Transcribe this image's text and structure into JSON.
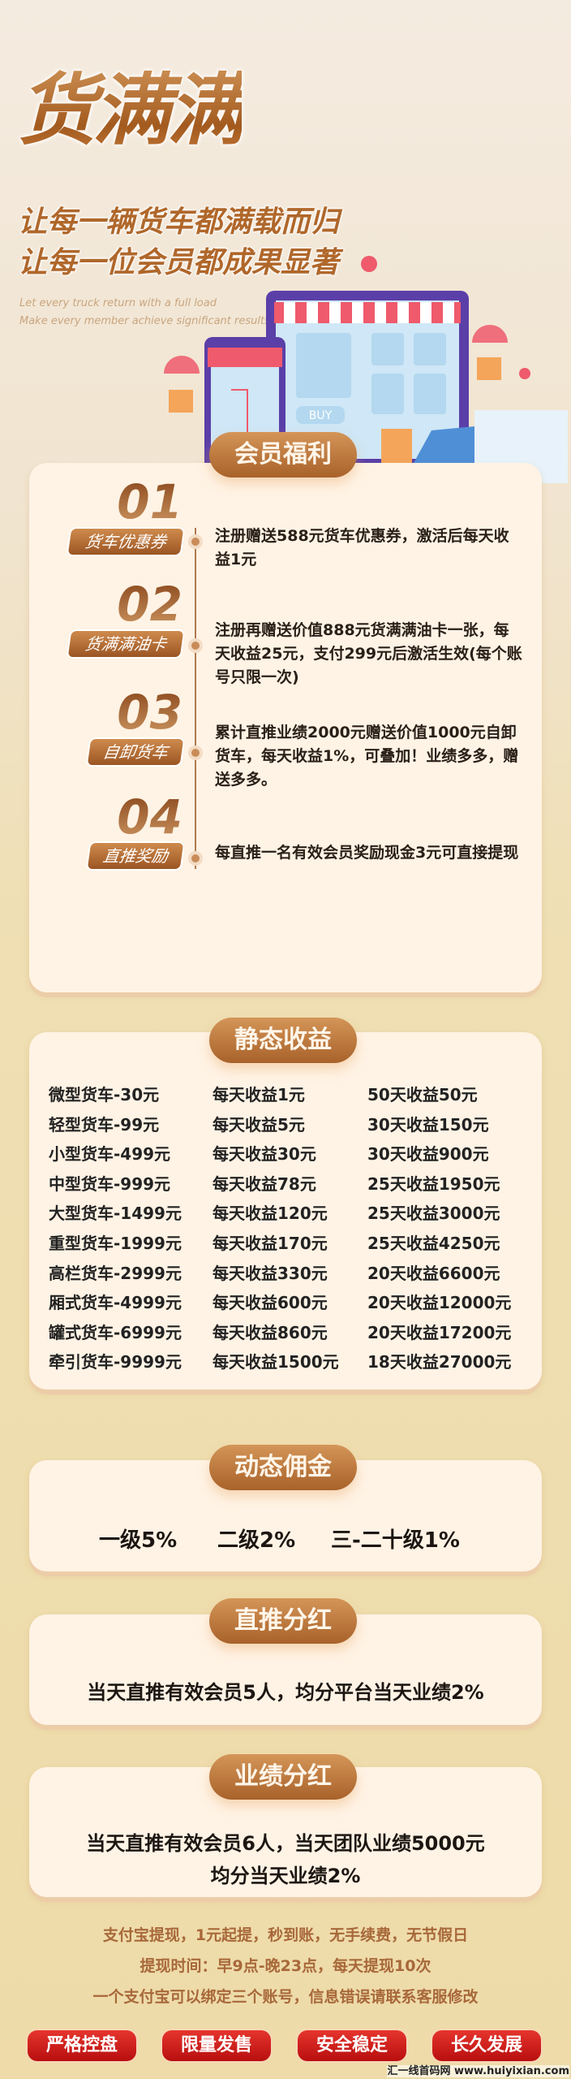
{
  "hero": {
    "title": "货满满",
    "slogan_1": "让每一辆货车都满载而归",
    "slogan_2": "让每一位会员都成果显著",
    "english_1": "Let every truck return with a full load",
    "english_2": "Make every member achieve significant results",
    "illustration_buy": "BUY"
  },
  "benefits": {
    "title": "会员福利",
    "items": [
      {
        "num": "01",
        "label": "货车优惠券",
        "text": "注册赠送588元货车优惠券，激活后每天收益1元"
      },
      {
        "num": "02",
        "label": "货满满油卡",
        "text": "注册再赠送价值888元货满满油卡一张，每天收益25元，支付299元后激活生效(每个账号只限一次)"
      },
      {
        "num": "03",
        "label": "自卸货车",
        "text": "累计直推业绩2000元赠送价值1000元自卸货车，每天收益1%，可叠加！业绩多多，赠送多多。"
      },
      {
        "num": "04",
        "label": "直推奖励",
        "text": "每直推一名有效会员奖励现金3元可直接提现"
      }
    ]
  },
  "static": {
    "title": "静态收益",
    "rows": [
      [
        "微型货车-30元",
        "每天收益1元",
        "50天收益50元"
      ],
      [
        "轻型货车-99元",
        "每天收益5元",
        "30天收益150元"
      ],
      [
        "小型货车-499元",
        "每天收益30元",
        "30天收益900元"
      ],
      [
        "中型货车-999元",
        "每天收益78元",
        "25天收益1950元"
      ],
      [
        "大型货车-1499元",
        "每天收益120元",
        "25天收益3000元"
      ],
      [
        "重型货车-1999元",
        "每天收益170元",
        "25天收益4250元"
      ],
      [
        "高栏货车-2999元",
        "每天收益330元",
        "20天收益6600元"
      ],
      [
        "厢式货车-4999元",
        "每天收益600元",
        "20天收益12000元"
      ],
      [
        "罐式货车-6999元",
        "每天收益860元",
        "20天收益17200元"
      ],
      [
        "牵引货车-9999元",
        "每天收益1500元",
        "18天收益27000元"
      ]
    ]
  },
  "dynamic": {
    "title": "动态佣金",
    "levels": [
      "一级5%",
      "二级2%",
      "三-二十级1%"
    ]
  },
  "direct": {
    "title": "直推分红",
    "text": "当天直推有效会员5人，均分平台当天业绩2%"
  },
  "performance": {
    "title": "业绩分红",
    "line_1": "当天直推有效会员6人，当天团队业绩5000元",
    "line_2": "均分当天业绩2%"
  },
  "footer": {
    "lines": [
      "支付宝提现，1元起提，秒到账，无手续费，无节假日",
      "提现时间：早9点-晚23点，每天提现10次",
      "一个支付宝可以绑定三个账号，信息错误请联系客服修改"
    ],
    "badges": [
      "严格控盘",
      "限量发售",
      "安全稳定",
      "长久发展"
    ],
    "watermark": "汇一线首码网 www.huiyixian.com"
  },
  "colors": {
    "brown": "#a8622a",
    "red": "#d42420",
    "cream": "#fff3e5"
  }
}
